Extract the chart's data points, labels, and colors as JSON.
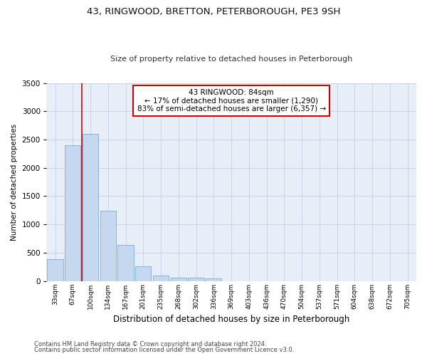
{
  "title": "43, RINGWOOD, BRETTON, PETERBOROUGH, PE3 9SH",
  "subtitle": "Size of property relative to detached houses in Peterborough",
  "xlabel": "Distribution of detached houses by size in Peterborough",
  "ylabel": "Number of detached properties",
  "footnote1": "Contains HM Land Registry data © Crown copyright and database right 2024.",
  "footnote2": "Contains public sector information licensed under the Open Government Licence v3.0.",
  "bar_color": "#c5d8f0",
  "bar_edge_color": "#7aadd4",
  "grid_color": "#c8d4e8",
  "background_color": "#e8eef8",
  "red_line_color": "#cc0000",
  "annotation_line1": "43 RINGWOOD: 84sqm",
  "annotation_line2": "← 17% of detached houses are smaller (1,290)",
  "annotation_line3": "83% of semi-detached houses are larger (6,357) →",
  "annotation_box_color": "#ffffff",
  "annotation_border_color": "#cc0000",
  "categories": [
    "33sqm",
    "67sqm",
    "100sqm",
    "134sqm",
    "167sqm",
    "201sqm",
    "235sqm",
    "268sqm",
    "302sqm",
    "336sqm",
    "369sqm",
    "403sqm",
    "436sqm",
    "470sqm",
    "504sqm",
    "537sqm",
    "571sqm",
    "604sqm",
    "638sqm",
    "672sqm",
    "705sqm"
  ],
  "bar_values": [
    390,
    2400,
    2600,
    1240,
    640,
    255,
    90,
    60,
    55,
    40,
    0,
    0,
    0,
    0,
    0,
    0,
    0,
    0,
    0,
    0,
    0
  ],
  "ylim": [
    0,
    3500
  ],
  "yticks": [
    0,
    500,
    1000,
    1500,
    2000,
    2500,
    3000,
    3500
  ],
  "red_line_x": 1.52,
  "figsize": [
    6.0,
    5.0
  ],
  "dpi": 100
}
